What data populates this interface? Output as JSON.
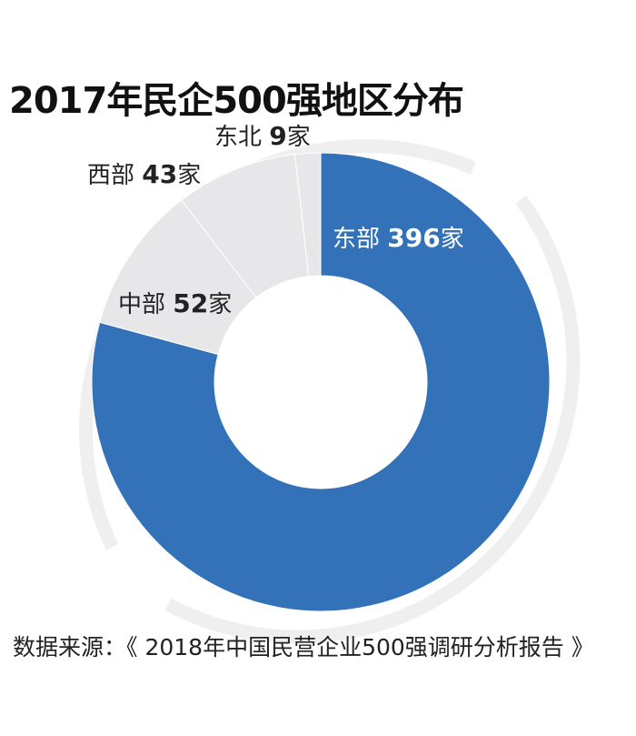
{
  "title": "2017年民企500强地区分布",
  "source": "数据来源：《 2018年中国民营企业500强调研分析报告 》",
  "colors": {
    "accent": "#3371b8",
    "other_slices": "#e7e7e9",
    "ring": "#efeff0",
    "label_dark": "#222222",
    "label_light": "#ffffff"
  },
  "chart_data": {
    "type": "pie",
    "variant": "donut",
    "title": "2017年民企500强地区分布",
    "unit": "家",
    "categories": [
      "东部",
      "中部",
      "西部",
      "东北"
    ],
    "values": [
      396,
      52,
      43,
      9
    ],
    "total": 500,
    "slices": [
      {
        "name": "东部",
        "value": 396,
        "unit": "家",
        "highlight": true
      },
      {
        "name": "中部",
        "value": 52,
        "unit": "家",
        "highlight": false
      },
      {
        "name": "西部",
        "value": 43,
        "unit": "家",
        "highlight": false
      },
      {
        "name": "东北",
        "value": 9,
        "unit": "家",
        "highlight": false
      }
    ]
  }
}
